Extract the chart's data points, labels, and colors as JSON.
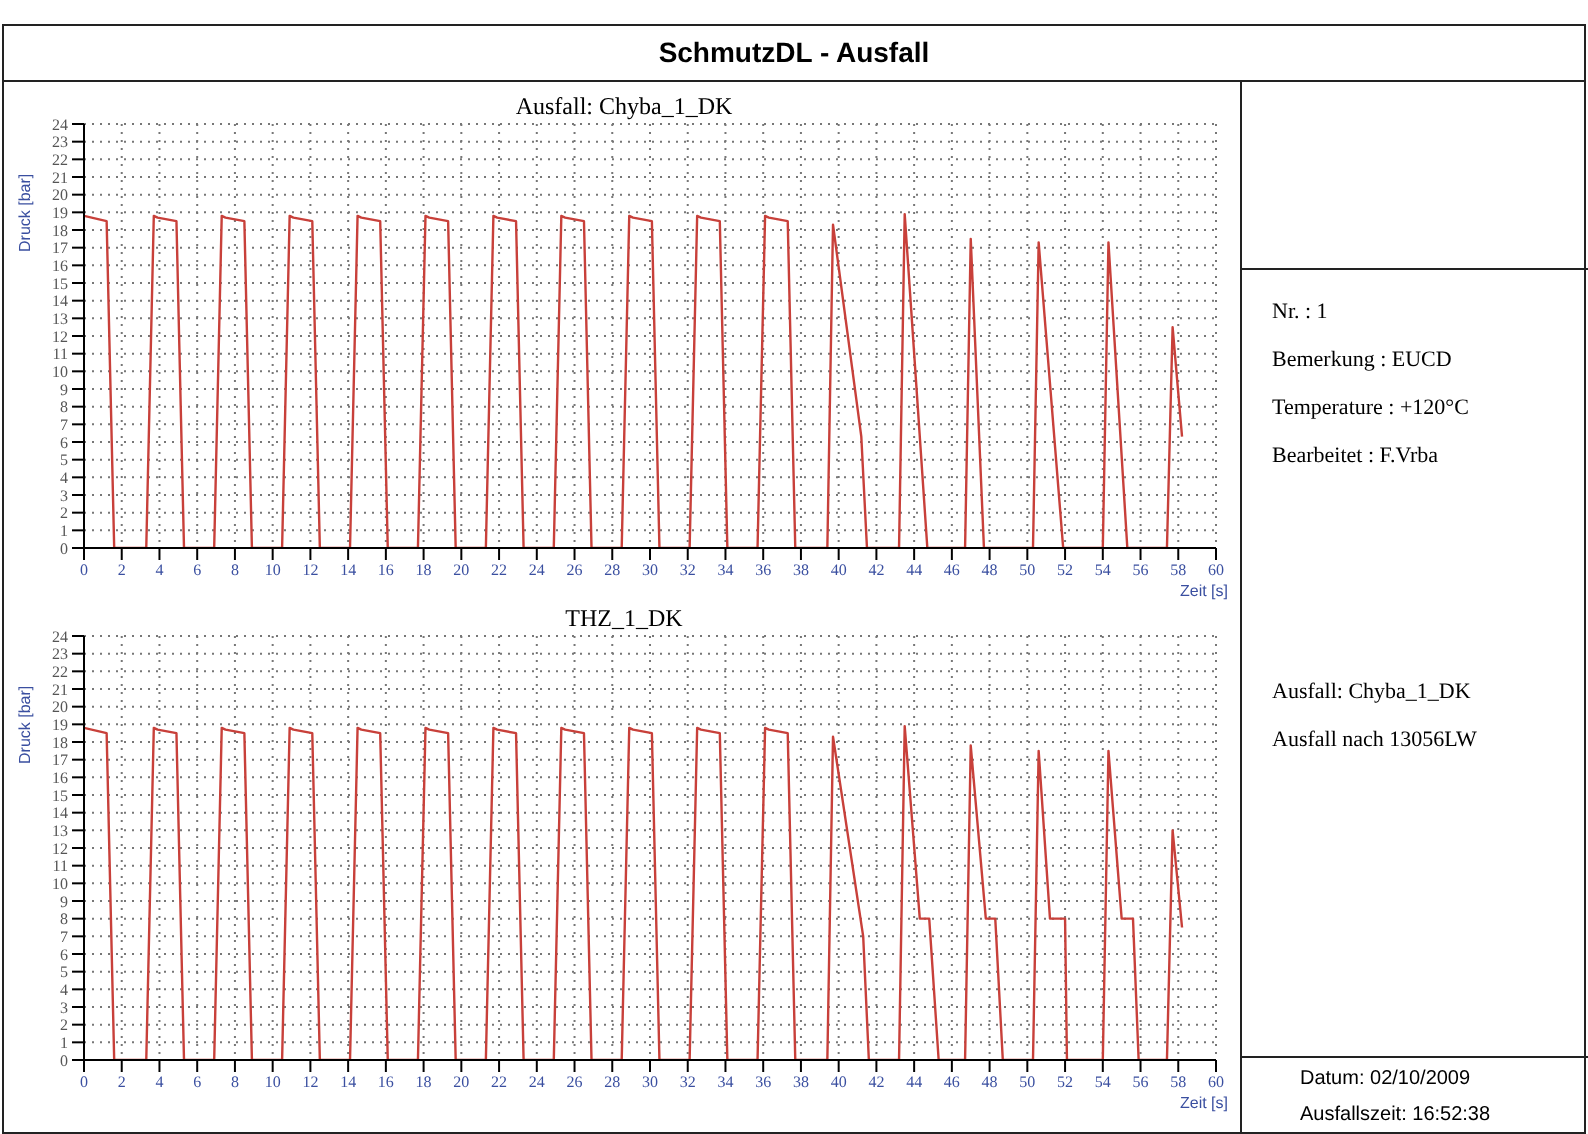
{
  "chart_data": [
    {
      "type": "line",
      "title": "Ausfall: Chyba_1_DK",
      "xlabel": "Zeit [s]",
      "ylabel": "Druck [bar]",
      "xlim": [
        0,
        60
      ],
      "ylim": [
        0,
        24
      ],
      "xticks": [
        0,
        2,
        4,
        6,
        8,
        10,
        12,
        14,
        16,
        18,
        20,
        22,
        24,
        26,
        28,
        30,
        32,
        34,
        36,
        38,
        40,
        42,
        44,
        46,
        48,
        50,
        52,
        54,
        56,
        58,
        60
      ],
      "yticks": [
        0,
        1,
        2,
        3,
        4,
        5,
        6,
        7,
        8,
        9,
        10,
        11,
        12,
        13,
        14,
        15,
        16,
        17,
        18,
        19,
        20,
        21,
        22,
        23,
        24
      ],
      "grid": true,
      "series": [
        {
          "color": "#c8403a",
          "x": [
            0,
            1.2,
            1.6,
            3.3,
            3.7,
            3.9,
            4.9,
            5.3,
            6.9,
            7.3,
            7.5,
            8.5,
            8.9,
            10.5,
            10.9,
            11.1,
            12.1,
            12.5,
            14.1,
            14.5,
            14.7,
            15.7,
            16.1,
            17.7,
            18.1,
            18.3,
            19.3,
            19.7,
            21.3,
            21.7,
            21.9,
            22.9,
            23.3,
            24.9,
            25.3,
            25.5,
            26.5,
            26.9,
            28.5,
            28.9,
            29.1,
            30.1,
            30.5,
            32.1,
            32.5,
            32.7,
            33.7,
            34.1,
            35.7,
            36.1,
            36.3,
            37.3,
            37.7,
            39.4,
            39.7,
            41.2,
            41.5,
            43.2,
            43.5,
            44.7,
            46.7,
            47.0,
            47.7,
            50.3,
            50.6,
            51.9,
            54.0,
            54.3,
            55.3,
            57.4,
            57.7,
            58.2
          ],
          "values": [
            18.8,
            18.5,
            0,
            0,
            18.8,
            18.7,
            18.5,
            0,
            0,
            18.8,
            18.7,
            18.5,
            0,
            0,
            18.8,
            18.7,
            18.5,
            0,
            0,
            18.8,
            18.7,
            18.5,
            0,
            0,
            18.8,
            18.7,
            18.5,
            0,
            0,
            18.8,
            18.7,
            18.5,
            0,
            0,
            18.8,
            18.7,
            18.5,
            0,
            0,
            18.8,
            18.7,
            18.5,
            0,
            0,
            18.8,
            18.7,
            18.5,
            0,
            0,
            18.8,
            18.7,
            18.5,
            0,
            0,
            18.3,
            6.3,
            0,
            0,
            18.9,
            0,
            0,
            17.5,
            0,
            0,
            17.3,
            0,
            0,
            17.3,
            0,
            0,
            12.5,
            6.3
          ]
        }
      ]
    },
    {
      "type": "line",
      "title": "THZ_1_DK",
      "xlabel": "Zeit [s]",
      "ylabel": "Druck [bar]",
      "xlim": [
        0,
        60
      ],
      "ylim": [
        0,
        24
      ],
      "xticks": [
        0,
        2,
        4,
        6,
        8,
        10,
        12,
        14,
        16,
        18,
        20,
        22,
        24,
        26,
        28,
        30,
        32,
        34,
        36,
        38,
        40,
        42,
        44,
        46,
        48,
        50,
        52,
        54,
        56,
        58,
        60
      ],
      "yticks": [
        0,
        1,
        2,
        3,
        4,
        5,
        6,
        7,
        8,
        9,
        10,
        11,
        12,
        13,
        14,
        15,
        16,
        17,
        18,
        19,
        20,
        21,
        22,
        23,
        24
      ],
      "grid": true,
      "series": [
        {
          "color": "#c8403a",
          "x": [
            0,
            1.2,
            1.6,
            3.3,
            3.7,
            3.9,
            4.9,
            5.3,
            6.9,
            7.3,
            7.5,
            8.5,
            8.9,
            10.5,
            10.9,
            11.1,
            12.1,
            12.5,
            14.1,
            14.5,
            14.7,
            15.7,
            16.1,
            17.7,
            18.1,
            18.3,
            19.3,
            19.7,
            21.3,
            21.7,
            21.9,
            22.9,
            23.3,
            24.9,
            25.3,
            25.5,
            26.5,
            26.9,
            28.5,
            28.9,
            29.1,
            30.1,
            30.5,
            32.1,
            32.5,
            32.7,
            33.7,
            34.1,
            35.7,
            36.1,
            36.3,
            37.3,
            37.7,
            39.4,
            39.7,
            41.3,
            41.6,
            43.2,
            43.5,
            44.3,
            44.8,
            45.3,
            46.7,
            47.0,
            47.8,
            48.3,
            48.7,
            50.3,
            50.6,
            51.2,
            52.0,
            52.1,
            54.0,
            54.3,
            55.0,
            55.6,
            55.9,
            57.4,
            57.7,
            58.2
          ],
          "values": [
            18.8,
            18.5,
            0,
            0,
            18.8,
            18.7,
            18.5,
            0,
            0,
            18.8,
            18.7,
            18.5,
            0,
            0,
            18.8,
            18.7,
            18.5,
            0,
            0,
            18.8,
            18.7,
            18.5,
            0,
            0,
            18.8,
            18.7,
            18.5,
            0,
            0,
            18.8,
            18.7,
            18.5,
            0,
            0,
            18.8,
            18.7,
            18.5,
            0,
            0,
            18.8,
            18.7,
            18.5,
            0,
            0,
            18.8,
            18.7,
            18.5,
            0,
            0,
            18.8,
            18.7,
            18.5,
            0,
            0,
            18.3,
            7,
            0,
            0,
            18.9,
            8,
            8,
            0,
            0,
            17.8,
            8,
            8,
            0,
            0,
            17.5,
            8,
            8,
            0,
            0,
            17.5,
            8,
            8,
            0,
            0,
            13,
            7.5
          ]
        }
      ]
    },
    {
      "type": "other",
      "title": "SchmutzDL - Ausfall",
      "annotations": [
        "Nr. : 1",
        "Bemerkung : EUCD",
        "Temperature : +120°C",
        "Bearbeitet : F.Vrba",
        "Ausfall: Chyba_1_DK",
        "Ausfall nach 13056LW",
        "Datum: 02/10/2009",
        "Ausfallszeit: 16:52:38"
      ]
    }
  ]
}
